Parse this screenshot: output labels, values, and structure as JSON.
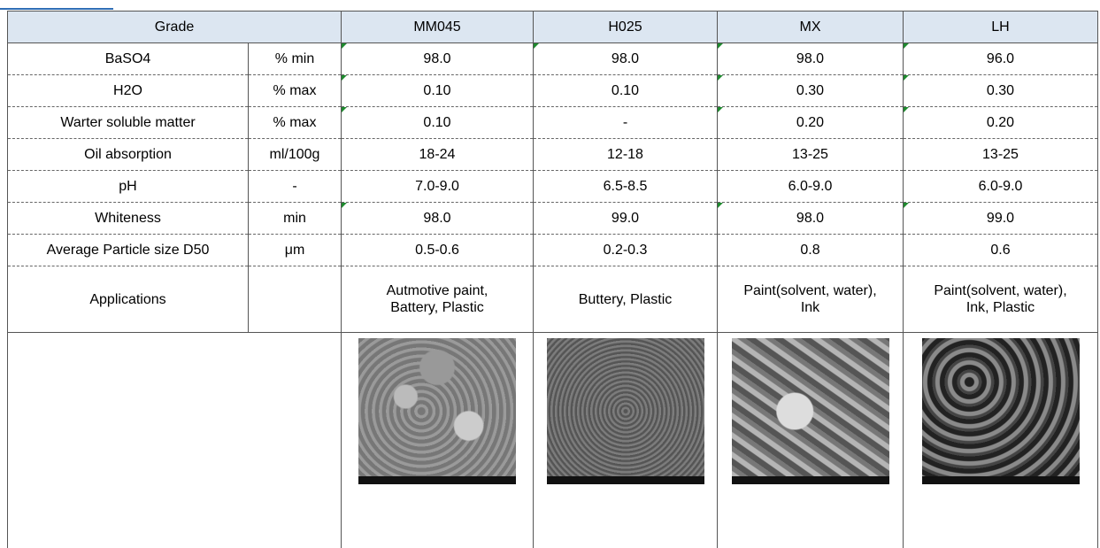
{
  "table": {
    "header": [
      "Grade",
      "MM045",
      "H025",
      "MX",
      "LH"
    ],
    "rows": [
      {
        "label": "BaSO4",
        "unit": "% min",
        "values": [
          "98.0",
          "98.0",
          "98.0",
          "96.0"
        ]
      },
      {
        "label": "H2O",
        "unit": "% max",
        "values": [
          "0.10",
          "0.10",
          "0.30",
          "0.30"
        ]
      },
      {
        "label": "Warter soluble matter",
        "unit": "% max",
        "values": [
          "0.10",
          "-",
          "0.20",
          "0.20"
        ]
      },
      {
        "label": "Oil absorption",
        "unit": "ml/100g",
        "values": [
          "18-24",
          "12-18",
          "13-25",
          "13-25"
        ]
      },
      {
        "label": "pH",
        "unit": "-",
        "values": [
          "7.0-9.0",
          "6.5-8.5",
          "6.0-9.0",
          "6.0-9.0"
        ]
      },
      {
        "label": "Whiteness",
        "unit": "min",
        "values": [
          "98.0",
          "99.0",
          "98.0",
          "99.0"
        ]
      },
      {
        "label": "Average Particle size D50",
        "unit": "μm",
        "values": [
          "0.5-0.6",
          "0.2-0.3",
          "0.8",
          "0.6"
        ]
      }
    ],
    "applications": {
      "label": "Applications",
      "values": [
        [
          "Autmotive paint,",
          "Battery, Plastic"
        ],
        [
          "Buttery, Plastic"
        ],
        [
          "Paint(solvent, water),",
          "Ink"
        ],
        [
          "Paint(solvent, water),",
          "Ink, Plastic"
        ]
      ]
    }
  }
}
